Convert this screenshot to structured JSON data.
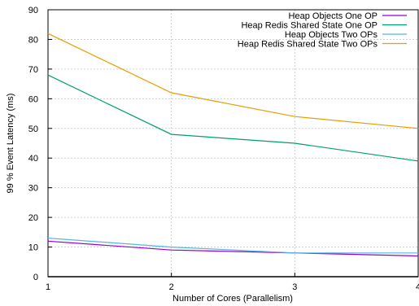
{
  "chart_data": {
    "type": "line",
    "title": "",
    "xlabel": "Number of Cores (Parallelism)",
    "ylabel": "99 % Event Latency (ms)",
    "x": [
      1,
      2,
      3,
      4
    ],
    "xlim": [
      1,
      4
    ],
    "ylim": [
      0,
      90
    ],
    "xticks": [
      "1",
      "2",
      "3",
      "4"
    ],
    "yticks": [
      "0",
      "10",
      "20",
      "30",
      "40",
      "50",
      "60",
      "70",
      "80",
      "90"
    ],
    "grid": true,
    "legend_position": "top-right",
    "series": [
      {
        "name": "Heap Objects One OP",
        "color": "#9400d3",
        "values": [
          12,
          9,
          8,
          7
        ]
      },
      {
        "name": "Heap Redis Shared State One OP",
        "color": "#009e73",
        "values": [
          68,
          48,
          45,
          39
        ]
      },
      {
        "name": "Heap Objects Two OPs",
        "color": "#56b4e9",
        "values": [
          13,
          10,
          8,
          8
        ]
      },
      {
        "name": "Heap Redis Shared State Two OPs",
        "color": "#e69f00",
        "values": [
          82,
          62,
          54,
          50
        ]
      }
    ]
  }
}
